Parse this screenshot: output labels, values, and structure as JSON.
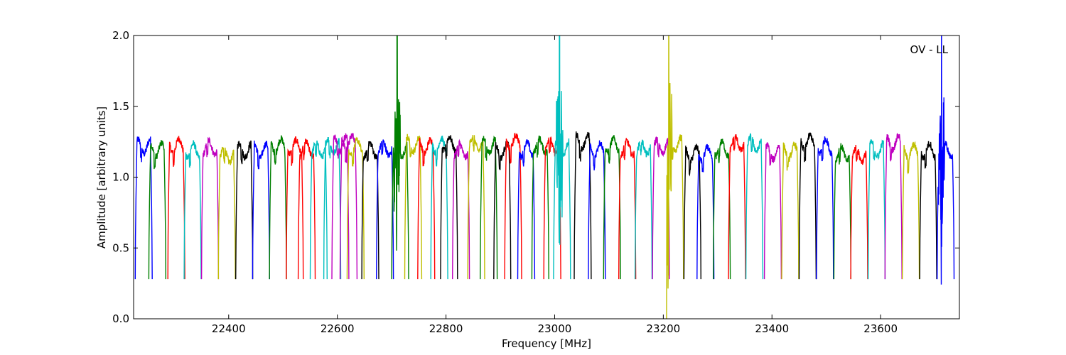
{
  "chart_data": {
    "type": "line",
    "title": "",
    "annotation": "OV - LL",
    "xlabel": "Frequency [MHz]",
    "ylabel": "Amplitude [arbitrary units]",
    "xlim": [
      22225,
      23745
    ],
    "ylim": [
      0.0,
      2.0
    ],
    "xticks": [
      22400,
      22600,
      22800,
      23000,
      23200,
      23400,
      23600
    ],
    "xtick_labels": [
      "22400",
      "22600",
      "22800",
      "23000",
      "23200",
      "23400",
      "23600"
    ],
    "yticks": [
      0.0,
      0.5,
      1.0,
      1.5,
      2.0
    ],
    "ytick_labels": [
      "0.0",
      "0.5",
      "1.0",
      "1.5",
      "2.0"
    ],
    "grid": false,
    "legend": "none",
    "series_colors": [
      "#0000ff",
      "#008000",
      "#ff0000",
      "#00bfbf",
      "#bf00bf",
      "#bfbf00",
      "#000000"
    ],
    "subband_width_mhz": 31.25,
    "subbands": [
      {
        "start": 22228,
        "color": "#0000ff"
      },
      {
        "start": 22253,
        "color": "#008000"
      },
      {
        "start": 22288,
        "color": "#ff0000"
      },
      {
        "start": 22318,
        "color": "#00bfbf"
      },
      {
        "start": 22350,
        "color": "#bf00bf"
      },
      {
        "start": 22381,
        "color": "#bfbf00"
      },
      {
        "start": 22413,
        "color": "#000000"
      },
      {
        "start": 22444,
        "color": "#0000ff"
      },
      {
        "start": 22475,
        "color": "#008000"
      },
      {
        "start": 22506,
        "color": "#ff0000"
      },
      {
        "start": 22528,
        "color": "#ff0000"
      },
      {
        "start": 22550,
        "color": "#00bfbf"
      },
      {
        "start": 22575,
        "color": "#00bfbf"
      },
      {
        "start": 22590,
        "color": "#bf00bf"
      },
      {
        "start": 22605,
        "color": "#bf00bf"
      },
      {
        "start": 22618,
        "color": "#bfbf00"
      },
      {
        "start": 22645,
        "color": "#000000"
      },
      {
        "start": 22672,
        "color": "#0000ff"
      },
      {
        "start": 22700,
        "color": "#008000",
        "spike": 22710
      },
      {
        "start": 22724,
        "color": "#bfbf00"
      },
      {
        "start": 22748,
        "color": "#ff0000"
      },
      {
        "start": 22772,
        "color": "#00bfbf"
      },
      {
        "start": 22790,
        "color": "#000000"
      },
      {
        "start": 22812,
        "color": "#bf00bf"
      },
      {
        "start": 22840,
        "color": "#bfbf00"
      },
      {
        "start": 22863,
        "color": "#008000"
      },
      {
        "start": 22888,
        "color": "#000000"
      },
      {
        "start": 22908,
        "color": "#ff0000"
      },
      {
        "start": 22932,
        "color": "#0000ff"
      },
      {
        "start": 22958,
        "color": "#008000"
      },
      {
        "start": 22980,
        "color": "#ff0000"
      },
      {
        "start": 22998,
        "color": "#00bfbf",
        "spike": 23009
      },
      {
        "start": 23036,
        "color": "#000000"
      },
      {
        "start": 23062,
        "color": "#0000ff"
      },
      {
        "start": 23090,
        "color": "#008000"
      },
      {
        "start": 23118,
        "color": "#ff0000"
      },
      {
        "start": 23148,
        "color": "#00bfbf"
      },
      {
        "start": 23180,
        "color": "#bf00bf"
      },
      {
        "start": 23206,
        "color": "#bfbf00",
        "spike": 23210
      },
      {
        "start": 23238,
        "color": "#000000"
      },
      {
        "start": 23262,
        "color": "#0000ff"
      },
      {
        "start": 23292,
        "color": "#008000"
      },
      {
        "start": 23320,
        "color": "#ff0000"
      },
      {
        "start": 23352,
        "color": "#00bfbf"
      },
      {
        "start": 23386,
        "color": "#bf00bf"
      },
      {
        "start": 23418,
        "color": "#bfbf00"
      },
      {
        "start": 23450,
        "color": "#000000"
      },
      {
        "start": 23482,
        "color": "#0000ff"
      },
      {
        "start": 23514,
        "color": "#008000"
      },
      {
        "start": 23545,
        "color": "#ff0000"
      },
      {
        "start": 23577,
        "color": "#00bfbf"
      },
      {
        "start": 23608,
        "color": "#bf00bf"
      },
      {
        "start": 23640,
        "color": "#bfbf00"
      },
      {
        "start": 23672,
        "color": "#000000"
      },
      {
        "start": 23704,
        "color": "#0000ff",
        "spike": 23712
      }
    ]
  }
}
